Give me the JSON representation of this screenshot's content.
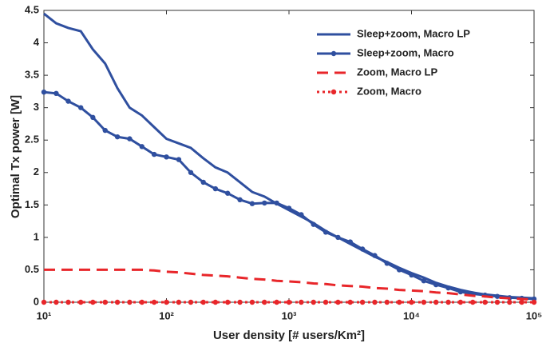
{
  "chart_data": {
    "type": "line",
    "xlabel": "User density [# users/Km²]",
    "ylabel": "Optimal Tx power [W]",
    "xscale": "log",
    "x": [
      10,
      12.6,
      15.8,
      20,
      25.1,
      31.6,
      39.8,
      50.1,
      63.1,
      79.4,
      100,
      126,
      158,
      200,
      251,
      316,
      398,
      501,
      631,
      794,
      1000,
      1259,
      1585,
      1995,
      2512,
      3162,
      3981,
      5012,
      6310,
      7943,
      10000,
      12589,
      15849,
      19953,
      25119,
      31623,
      39811,
      50119,
      63096,
      79433,
      100000
    ],
    "xlim": [
      10,
      100000
    ],
    "xticks": [
      {
        "value": 10,
        "label": "10¹"
      },
      {
        "value": 100,
        "label": "10²"
      },
      {
        "value": 1000,
        "label": "10³"
      },
      {
        "value": 10000,
        "label": "10⁴"
      },
      {
        "value": 100000,
        "label": "10⁵"
      }
    ],
    "ylim": [
      0,
      4.5
    ],
    "yticks": [
      0,
      0.5,
      1,
      1.5,
      2,
      2.5,
      3,
      3.5,
      4,
      4.5
    ],
    "legend": "upper right",
    "series": [
      {
        "name": "Sleep+zoom, Macro LP",
        "color": "#2f4f9f",
        "style": "solid",
        "marker": false,
        "values": [
          4.45,
          4.3,
          4.23,
          4.18,
          3.9,
          3.68,
          3.3,
          3.0,
          2.88,
          2.7,
          2.52,
          2.45,
          2.38,
          2.22,
          2.08,
          2.0,
          1.85,
          1.7,
          1.63,
          1.52,
          1.42,
          1.32,
          1.22,
          1.1,
          1.0,
          0.9,
          0.8,
          0.7,
          0.62,
          0.53,
          0.45,
          0.38,
          0.3,
          0.24,
          0.19,
          0.15,
          0.12,
          0.1,
          0.08,
          0.07,
          0.06
        ]
      },
      {
        "name": "Sleep+zoom, Macro",
        "color": "#2f4f9f",
        "style": "solid",
        "marker": true,
        "values": [
          3.24,
          3.22,
          3.1,
          3.0,
          2.85,
          2.65,
          2.55,
          2.52,
          2.4,
          2.28,
          2.24,
          2.2,
          2.0,
          1.85,
          1.75,
          1.68,
          1.58,
          1.52,
          1.53,
          1.53,
          1.45,
          1.35,
          1.2,
          1.08,
          1.0,
          0.93,
          0.82,
          0.72,
          0.6,
          0.5,
          0.42,
          0.33,
          0.27,
          0.22,
          0.16,
          0.13,
          0.11,
          0.09,
          0.07,
          0.06,
          0.05
        ]
      },
      {
        "name": "Zoom, Macro LP",
        "color": "#e8262a",
        "style": "dashed",
        "marker": false,
        "values": [
          0.5,
          0.5,
          0.5,
          0.5,
          0.5,
          0.5,
          0.5,
          0.5,
          0.5,
          0.49,
          0.47,
          0.46,
          0.44,
          0.42,
          0.41,
          0.4,
          0.38,
          0.36,
          0.35,
          0.33,
          0.32,
          0.31,
          0.29,
          0.28,
          0.26,
          0.25,
          0.24,
          0.22,
          0.21,
          0.19,
          0.18,
          0.17,
          0.15,
          0.14,
          0.12,
          0.1,
          0.09,
          0.07,
          0.06,
          0.05,
          0.04
        ]
      },
      {
        "name": "Zoom, Macro",
        "color": "#e8262a",
        "style": "dotted",
        "marker": true,
        "values": [
          0,
          0,
          0,
          0,
          0,
          0,
          0,
          0,
          0,
          0,
          0,
          0,
          0,
          0,
          0,
          0,
          0,
          0,
          0,
          0,
          0,
          0,
          0,
          0,
          0,
          0,
          0,
          0,
          0,
          0,
          0,
          0,
          0,
          0,
          0,
          0,
          0,
          0,
          0,
          0,
          0
        ]
      }
    ]
  }
}
